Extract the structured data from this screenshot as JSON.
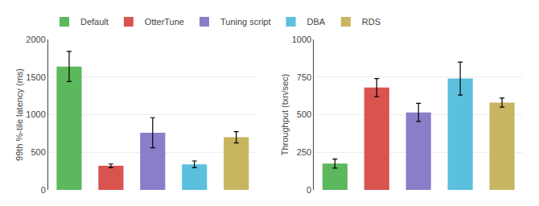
{
  "chart_data": [
    {
      "type": "bar",
      "categories": [
        "Default",
        "OtterTune",
        "Tuning script",
        "DBA",
        "RDS"
      ],
      "values": [
        1640,
        320,
        760,
        340,
        700
      ],
      "errors": [
        200,
        25,
        200,
        45,
        75
      ],
      "colors": [
        "#5cb85c",
        "#d9534f",
        "#8b7dc8",
        "#5bc0de",
        "#c8b560"
      ],
      "ylabel": "99th %-tile latency (ms)",
      "ylim": [
        0,
        2000
      ],
      "yticks": [
        0,
        500,
        1000,
        1500,
        2000
      ],
      "grid": true,
      "tick_labels": "y",
      "legend": "top"
    },
    {
      "type": "bar",
      "categories": [
        "Default",
        "OtterTune",
        "Tuning script",
        "DBA",
        "RDS"
      ],
      "values": [
        175,
        680,
        515,
        740,
        580
      ],
      "errors": [
        30,
        60,
        60,
        110,
        30
      ],
      "colors": [
        "#5cb85c",
        "#d9534f",
        "#8b7dc8",
        "#5bc0de",
        "#c8b560"
      ],
      "ylabel": "Throughput (txn/sec)",
      "ylim": [
        0,
        1000
      ],
      "yticks": [
        0,
        250,
        500,
        750,
        1000
      ],
      "grid": true,
      "tick_labels": "y",
      "legend": "top"
    }
  ]
}
